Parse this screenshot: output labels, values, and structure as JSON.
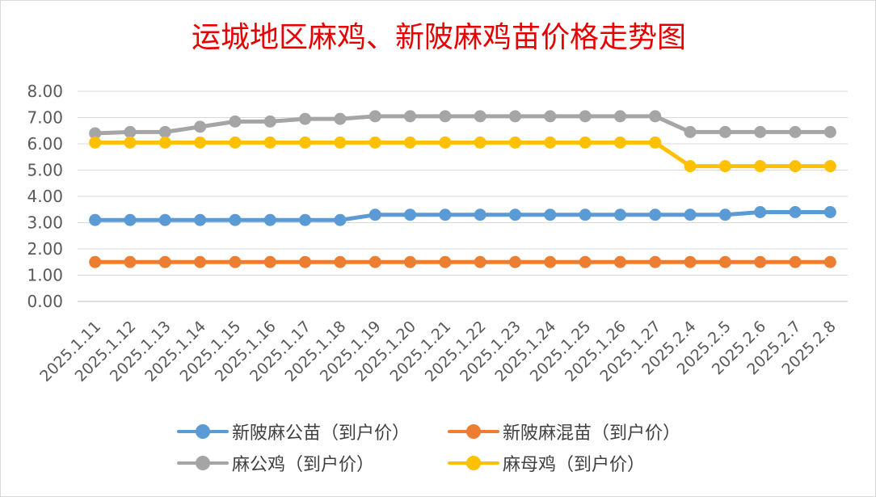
{
  "chart_data": {
    "type": "line",
    "title": "运城地区麻鸡、新陂麻鸡苗价格走势图",
    "xlabel": "",
    "ylabel": "",
    "ylim": [
      0,
      8
    ],
    "y_ticks": [
      "0.00",
      "1.00",
      "2.00",
      "3.00",
      "4.00",
      "5.00",
      "6.00",
      "7.00",
      "8.00"
    ],
    "grid": true,
    "legend_position": "bottom",
    "categories": [
      "2025.1.11",
      "2025.1.12",
      "2025.1.13",
      "2025.1.14",
      "2025.1.15",
      "2025.1.16",
      "2025.1.17",
      "2025.1.18",
      "2025.1.19",
      "2025.1.20",
      "2025.1.21",
      "2025.1.22",
      "2025.1.23",
      "2025.1.24",
      "2025.1.25",
      "2025.1.26",
      "2025.1.27",
      "2025.2.4",
      "2025.2.5",
      "2025.2.6",
      "2025.2.7",
      "2025.2.8"
    ],
    "series": [
      {
        "name": "新陂麻公苗（到户价）",
        "color": "#5b9bd5",
        "values": [
          3.1,
          3.1,
          3.1,
          3.1,
          3.1,
          3.1,
          3.1,
          3.1,
          3.3,
          3.3,
          3.3,
          3.3,
          3.3,
          3.3,
          3.3,
          3.3,
          3.3,
          3.3,
          3.3,
          3.4,
          3.4,
          3.4
        ]
      },
      {
        "name": "新陂麻混苗（到户价）",
        "color": "#ed7d31",
        "values": [
          1.5,
          1.5,
          1.5,
          1.5,
          1.5,
          1.5,
          1.5,
          1.5,
          1.5,
          1.5,
          1.5,
          1.5,
          1.5,
          1.5,
          1.5,
          1.5,
          1.5,
          1.5,
          1.5,
          1.5,
          1.5,
          1.5
        ]
      },
      {
        "name": "麻公鸡（到户价）",
        "color": "#a5a5a5",
        "values": [
          6.4,
          6.45,
          6.45,
          6.65,
          6.85,
          6.85,
          6.95,
          6.95,
          7.05,
          7.05,
          7.05,
          7.05,
          7.05,
          7.05,
          7.05,
          7.05,
          7.05,
          6.45,
          6.45,
          6.45,
          6.45,
          6.45
        ]
      },
      {
        "name": "麻母鸡（到户价）",
        "color": "#ffc000",
        "values": [
          6.05,
          6.05,
          6.05,
          6.05,
          6.05,
          6.05,
          6.05,
          6.05,
          6.05,
          6.05,
          6.05,
          6.05,
          6.05,
          6.05,
          6.05,
          6.05,
          6.05,
          5.15,
          5.15,
          5.15,
          5.15,
          5.15
        ]
      }
    ]
  }
}
